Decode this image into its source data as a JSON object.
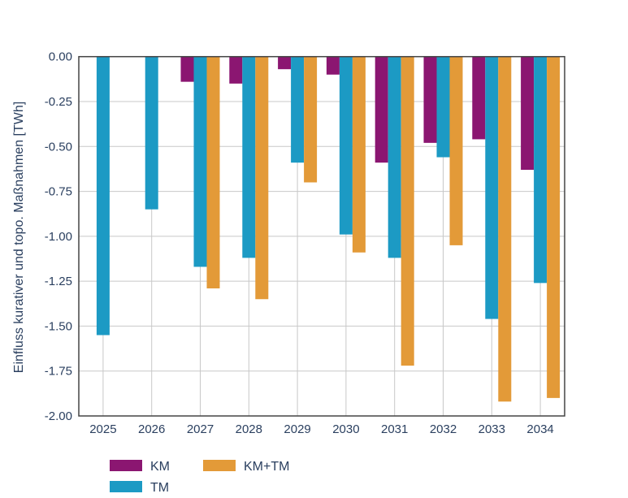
{
  "chart_data": {
    "type": "bar",
    "title": "",
    "xlabel": "",
    "ylabel": "Einfluss kurativer und topo. Maßnahmen [TWh]",
    "ylim": [
      -2.0,
      0.0
    ],
    "yticks": [
      "0.00",
      "-0.25",
      "-0.50",
      "-0.75",
      "-1.00",
      "-1.25",
      "-1.50",
      "-1.75",
      "-2.00"
    ],
    "ytick_values": [
      0,
      -0.25,
      -0.5,
      -0.75,
      -1.0,
      -1.25,
      -1.5,
      -1.75,
      -2.0
    ],
    "categories": [
      "2025",
      "2026",
      "2027",
      "2028",
      "2029",
      "2030",
      "2031",
      "2032",
      "2033",
      "2034"
    ],
    "grid": true,
    "legend_position": "bottom-left",
    "series": [
      {
        "name": "KM",
        "color": "#8b1671",
        "values": [
          0,
          0,
          -0.14,
          -0.15,
          -0.07,
          -0.1,
          -0.59,
          -0.48,
          -0.46,
          -0.63
        ]
      },
      {
        "name": "TM",
        "color": "#1c9ac4",
        "values": [
          -1.55,
          -0.85,
          -1.17,
          -1.12,
          -0.59,
          -0.99,
          -1.12,
          -0.56,
          -1.46,
          -1.26
        ]
      },
      {
        "name": "KM+TM",
        "color": "#e39a38",
        "values": [
          0,
          0,
          -1.29,
          -1.35,
          -0.7,
          -1.09,
          -1.72,
          -1.05,
          -1.92,
          -1.9
        ]
      }
    ]
  }
}
